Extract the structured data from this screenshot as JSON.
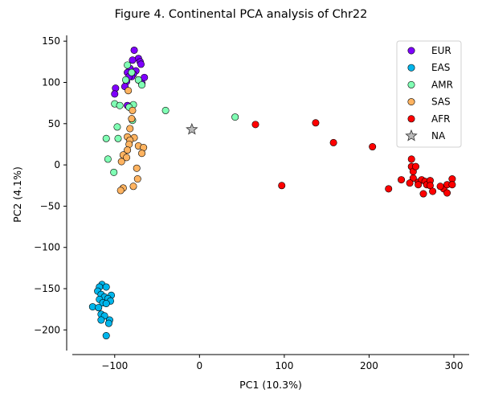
{
  "chart_data": {
    "type": "scatter",
    "title": "Figure 4. Continental PCA analysis of Chr22",
    "xlabel": "PC1 (10.3%)",
    "ylabel": "PC2 (4.1%)",
    "xlim": [
      -150,
      318
    ],
    "ylim": [
      -225,
      157
    ],
    "xticks": [
      -100,
      0,
      100,
      200,
      300
    ],
    "yticks": [
      150,
      100,
      50,
      0,
      -50,
      -100,
      -150,
      -200
    ],
    "xtick_labels": [
      "−100",
      "0",
      "100",
      "200",
      "300"
    ],
    "ytick_labels": [
      "150",
      "100",
      "50",
      "0",
      "−50",
      "−100",
      "−150",
      "−200"
    ],
    "grid": false,
    "legend_position": "top-right",
    "series": [
      {
        "name": "EUR",
        "color": "#7f00ff",
        "marker": "circle",
        "points": [
          [
            -77,
            139
          ],
          [
            -72,
            129
          ],
          [
            -79,
            127
          ],
          [
            -70,
            125
          ],
          [
            -69,
            122
          ],
          [
            -82,
            117
          ],
          [
            -75,
            114
          ],
          [
            -78,
            110
          ],
          [
            -85,
            112
          ],
          [
            -80,
            107
          ],
          [
            -86,
            101
          ],
          [
            -72,
            103
          ],
          [
            -68,
            99
          ],
          [
            -65,
            106
          ],
          [
            -88,
            95
          ],
          [
            -99,
            93
          ],
          [
            -100,
            86
          ],
          [
            -85,
            72
          ],
          [
            -83,
            107
          ]
        ]
      },
      {
        "name": "EAS",
        "color": "#00b5eb",
        "marker": "circle",
        "points": [
          [
            -115,
            -145
          ],
          [
            -118,
            -148
          ],
          [
            -110,
            -148
          ],
          [
            -120,
            -153
          ],
          [
            -116,
            -157
          ],
          [
            -104,
            -158
          ],
          [
            -112,
            -160
          ],
          [
            -118,
            -163
          ],
          [
            -108,
            -162
          ],
          [
            -114,
            -167
          ],
          [
            -105,
            -165
          ],
          [
            -110,
            -168
          ],
          [
            -126,
            -172
          ],
          [
            -119,
            -173
          ],
          [
            -116,
            -181
          ],
          [
            -112,
            -183
          ],
          [
            -116,
            -188
          ],
          [
            -106,
            -188
          ],
          [
            -107,
            -192
          ],
          [
            -110,
            -207
          ]
        ]
      },
      {
        "name": "AMR",
        "color": "#80ffb4",
        "marker": "circle",
        "points": [
          [
            -85,
            121
          ],
          [
            -80,
            112
          ],
          [
            -87,
            103
          ],
          [
            -72,
            103
          ],
          [
            -68,
            97
          ],
          [
            -40,
            66
          ],
          [
            -100,
            74
          ],
          [
            -94,
            72
          ],
          [
            -78,
            73
          ],
          [
            -83,
            70
          ],
          [
            -79,
            54
          ],
          [
            -97,
            46
          ],
          [
            -110,
            32
          ],
          [
            -96,
            32
          ],
          [
            -108,
            7
          ],
          [
            -101,
            -9
          ],
          [
            42,
            58
          ]
        ]
      },
      {
        "name": "SAS",
        "color": "#ffb360",
        "marker": "circle",
        "points": [
          [
            -84,
            90
          ],
          [
            -79,
            66
          ],
          [
            -80,
            56
          ],
          [
            -82,
            44
          ],
          [
            -77,
            33
          ],
          [
            -85,
            34
          ],
          [
            -82,
            30
          ],
          [
            -83,
            25
          ],
          [
            -85,
            18
          ],
          [
            -72,
            23
          ],
          [
            -66,
            21
          ],
          [
            -68,
            14
          ],
          [
            -90,
            12
          ],
          [
            -86,
            9
          ],
          [
            -92,
            4
          ],
          [
            -74,
            -4
          ],
          [
            -73,
            -17
          ],
          [
            -90,
            -28
          ],
          [
            -93,
            -31
          ],
          [
            -78,
            -26
          ]
        ]
      },
      {
        "name": "AFR",
        "color": "#ff0000",
        "marker": "circle",
        "points": [
          [
            66,
            49
          ],
          [
            137,
            51
          ],
          [
            158,
            27
          ],
          [
            204,
            22
          ],
          [
            97,
            -25
          ],
          [
            223,
            -29
          ],
          [
            238,
            -18
          ],
          [
            250,
            7
          ],
          [
            250,
            -2
          ],
          [
            252,
            -8
          ],
          [
            255,
            -2
          ],
          [
            252,
            -16
          ],
          [
            248,
            -22
          ],
          [
            258,
            -21
          ],
          [
            262,
            -18
          ],
          [
            266,
            -20
          ],
          [
            268,
            -24
          ],
          [
            272,
            -19
          ],
          [
            272,
            -25
          ],
          [
            264,
            -35
          ],
          [
            258,
            -24
          ],
          [
            288,
            -29
          ],
          [
            292,
            -24
          ],
          [
            298,
            -17
          ],
          [
            298,
            -24
          ],
          [
            284,
            -26
          ],
          [
            292,
            -34
          ],
          [
            275,
            -32
          ]
        ]
      },
      {
        "name": "NA",
        "color": "#bbbbbb",
        "marker": "star",
        "points": [
          [
            -9,
            43
          ]
        ]
      }
    ]
  }
}
